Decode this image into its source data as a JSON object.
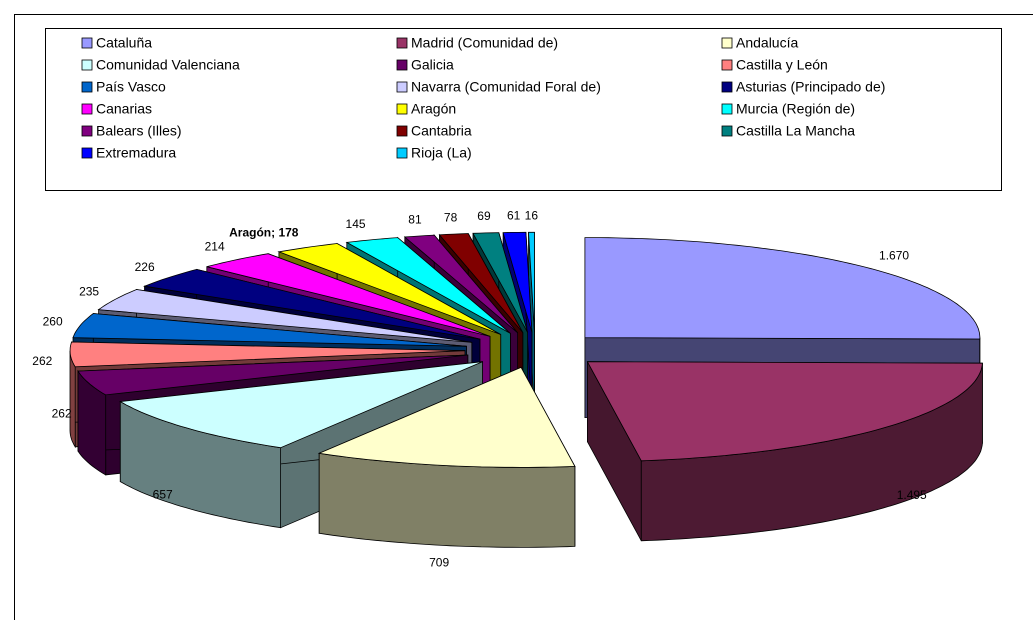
{
  "chart_data": {
    "type": "pie3d",
    "categories": [
      "Cataluña",
      "Madrid (Comunidad de)",
      "Andalucía",
      "Comunidad Valenciana",
      "Galicia",
      "Castilla y León",
      "País Vasco",
      "Navarra (Comunidad Foral de)",
      "Asturias (Principado de)",
      "Canarias",
      "Aragón",
      "Murcia (Región de)",
      "Balears (Illes)",
      "Cantabria",
      "Castilla La Mancha",
      "Extremadura",
      "Rioja (La)"
    ],
    "values": [
      1670,
      1495,
      709,
      657,
      262,
      262,
      260,
      235,
      226,
      214,
      178,
      145,
      81,
      78,
      69,
      61,
      16
    ],
    "value_labels": [
      "1.670",
      "1.495",
      "709",
      "657",
      "262",
      "262",
      "260",
      "235",
      "226",
      "214",
      "Aragón; 178",
      "145",
      "81",
      "78",
      "69",
      "61",
      "16"
    ],
    "colors": [
      "#9999ff",
      "#993366",
      "#ffffcc",
      "#ccffff",
      "#660066",
      "#ff8080",
      "#0066cc",
      "#ccccff",
      "#000080",
      "#ff00ff",
      "#ffff00",
      "#00ffff",
      "#800080",
      "#800000",
      "#008080",
      "#0000ff",
      "#00ccff"
    ],
    "legend": "top"
  }
}
